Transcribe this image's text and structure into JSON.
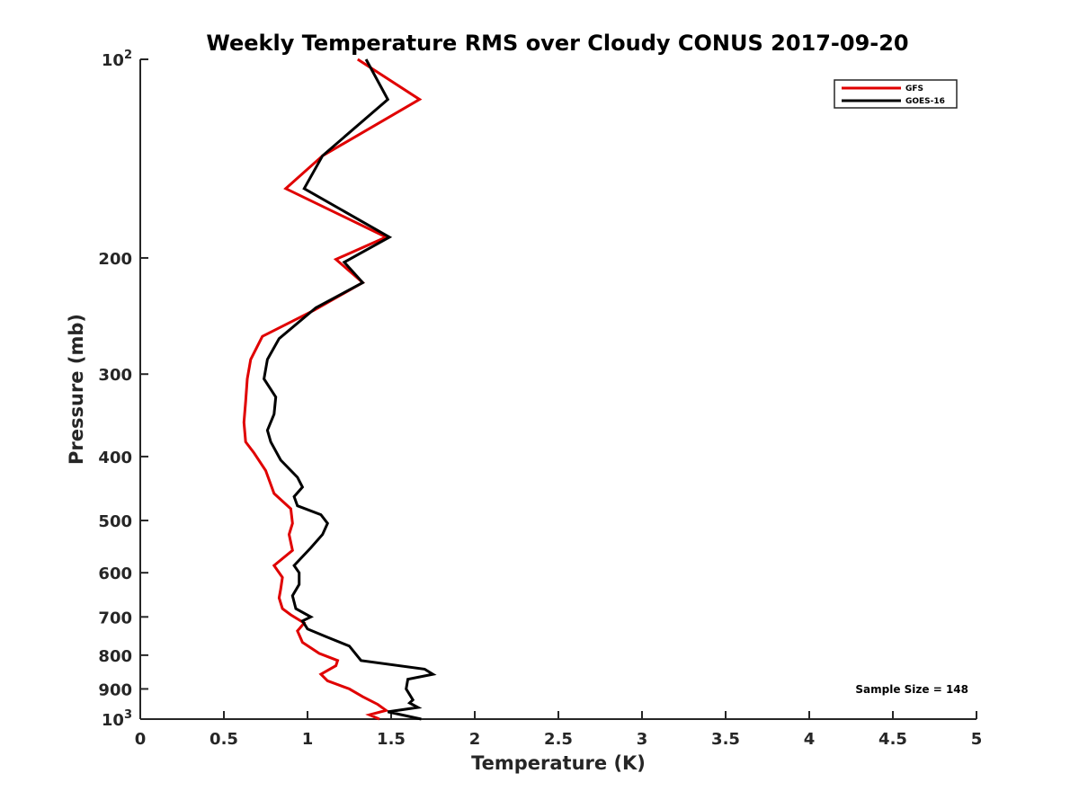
{
  "chart_data": {
    "type": "line",
    "title": "Weekly Temperature RMS over Cloudy CONUS 2017-09-20",
    "xlabel": "Temperature (K)",
    "ylabel": "Pressure (mb)",
    "xlim": [
      0,
      5
    ],
    "ylim": [
      100,
      1000
    ],
    "y_scale": "log",
    "y_reversed": true,
    "grid": false,
    "legend_position": "top-right",
    "x_ticks": [
      "0",
      "0.5",
      "1",
      "1.5",
      "2",
      "2.5",
      "3",
      "3.5",
      "4",
      "4.5",
      "5"
    ],
    "y_ticks": [
      {
        "value": 100,
        "base": "10",
        "exp": "2"
      },
      {
        "value": 200,
        "label": "200"
      },
      {
        "value": 300,
        "label": "300"
      },
      {
        "value": 400,
        "label": "400"
      },
      {
        "value": 500,
        "label": "500"
      },
      {
        "value": 600,
        "label": "600"
      },
      {
        "value": 700,
        "label": "700"
      },
      {
        "value": 800,
        "label": "800"
      },
      {
        "value": 900,
        "label": "900"
      },
      {
        "value": 1000,
        "base": "10",
        "exp": "3"
      }
    ],
    "annotation": "Sample Size = 148",
    "series": [
      {
        "name": "GFS",
        "color": "#e00000",
        "x": [
          1.3,
          1.67,
          1.09,
          0.87,
          1.47,
          1.17,
          1.33,
          1.04,
          0.73,
          0.66,
          0.64,
          0.63,
          0.62,
          0.63,
          0.68,
          0.75,
          0.8,
          0.9,
          0.91,
          0.89,
          0.91,
          0.8,
          0.85,
          0.84,
          0.83,
          0.85,
          0.9,
          0.98,
          0.94,
          0.97,
          1.07,
          1.18,
          1.17,
          1.08,
          1.12,
          1.25,
          1.33,
          1.42,
          1.47,
          1.37,
          1.43
        ],
        "y": [
          100,
          115,
          140,
          157,
          186,
          201,
          218,
          240,
          263,
          285,
          305,
          330,
          355,
          380,
          395,
          420,
          455,
          480,
          505,
          525,
          555,
          585,
          610,
          635,
          655,
          680,
          695,
          715,
          735,
          765,
          795,
          815,
          830,
          855,
          875,
          900,
          925,
          950,
          970,
          985,
          1000
        ]
      },
      {
        "name": "GOES-16",
        "color": "#000000",
        "x": [
          1.35,
          1.48,
          1.09,
          0.98,
          1.49,
          1.22,
          1.33,
          1.05,
          0.83,
          0.76,
          0.74,
          0.81,
          0.8,
          0.76,
          0.78,
          0.84,
          0.94,
          0.97,
          0.92,
          0.94,
          1.08,
          1.12,
          1.09,
          1.02,
          0.92,
          0.95,
          0.95,
          0.91,
          0.93,
          1.02,
          0.97,
          1.0,
          1.11,
          1.25,
          1.32,
          1.7,
          1.75,
          1.6,
          1.59,
          1.63,
          1.61,
          1.66,
          1.48,
          1.68
        ],
        "y": [
          100,
          115,
          140,
          157,
          186,
          203,
          218,
          238,
          265,
          285,
          305,
          325,
          345,
          365,
          380,
          405,
          430,
          445,
          460,
          475,
          490,
          505,
          525,
          550,
          585,
          600,
          625,
          650,
          680,
          700,
          710,
          730,
          750,
          775,
          815,
          840,
          855,
          870,
          900,
          935,
          945,
          960,
          975,
          1000
        ]
      }
    ]
  }
}
